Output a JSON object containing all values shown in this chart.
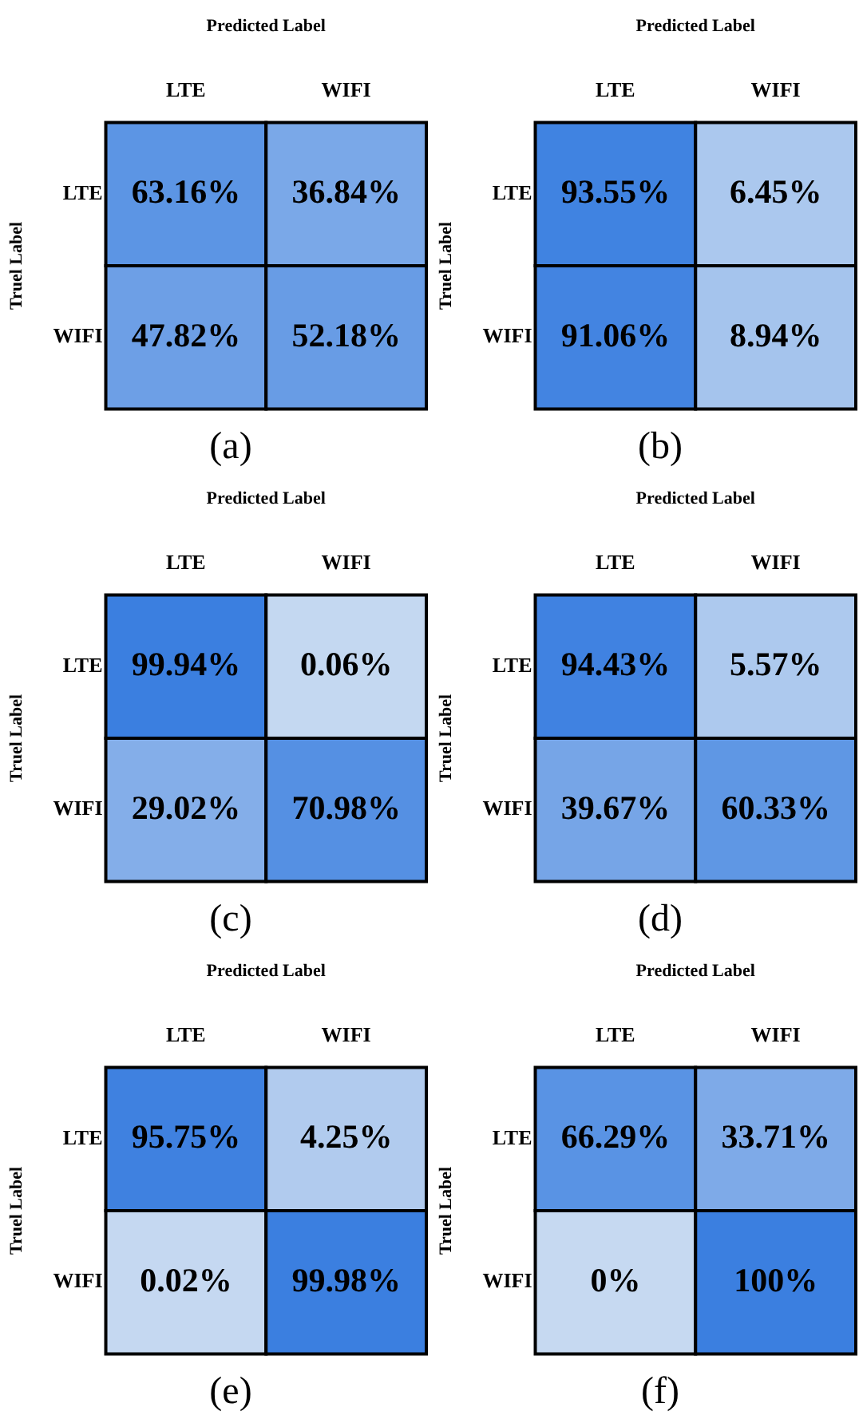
{
  "chart_data": [
    {
      "type": "heatmap",
      "xlabel": "Predicted Label",
      "ylabel": "Truel Label",
      "annotations": [
        "(a)"
      ],
      "categories": [
        "LTE",
        "WIFI"
      ],
      "y_categories": [
        "LTE",
        "WIFI"
      ],
      "cells": [
        [
          63.16,
          36.84
        ],
        [
          47.82,
          52.18
        ]
      ],
      "cell_labels": [
        [
          "63.16%",
          "36.84%"
        ],
        [
          "47.82%",
          "52.18%"
        ]
      ]
    },
    {
      "type": "heatmap",
      "xlabel": "Predicted Label",
      "ylabel": "Truel Label",
      "annotations": [
        "(b)"
      ],
      "categories": [
        "LTE",
        "WIFI"
      ],
      "y_categories": [
        "LTE",
        "WIFI"
      ],
      "cells": [
        [
          93.55,
          6.45
        ],
        [
          91.06,
          8.94
        ]
      ],
      "cell_labels": [
        [
          "93.55%",
          "6.45%"
        ],
        [
          "91.06%",
          "8.94%"
        ]
      ]
    },
    {
      "type": "heatmap",
      "xlabel": "Predicted Label",
      "ylabel": "Truel Label",
      "annotations": [
        "(c)"
      ],
      "categories": [
        "LTE",
        "WIFI"
      ],
      "y_categories": [
        "LTE",
        "WIFI"
      ],
      "cells": [
        [
          99.94,
          0.06
        ],
        [
          29.02,
          70.98
        ]
      ],
      "cell_labels": [
        [
          "99.94%",
          "0.06%"
        ],
        [
          "29.02%",
          "70.98%"
        ]
      ]
    },
    {
      "type": "heatmap",
      "xlabel": "Predicted Label",
      "ylabel": "Truel Label",
      "annotations": [
        "(d)"
      ],
      "categories": [
        "LTE",
        "WIFI"
      ],
      "y_categories": [
        "LTE",
        "WIFI"
      ],
      "cells": [
        [
          94.43,
          5.57
        ],
        [
          39.67,
          60.33
        ]
      ],
      "cell_labels": [
        [
          "94.43%",
          "5.57%"
        ],
        [
          "39.67%",
          "60.33%"
        ]
      ]
    },
    {
      "type": "heatmap",
      "xlabel": "Predicted Label",
      "ylabel": "Truel Label",
      "annotations": [
        "(e)"
      ],
      "categories": [
        "LTE",
        "WIFI"
      ],
      "y_categories": [
        "LTE",
        "WIFI"
      ],
      "cells": [
        [
          95.75,
          4.25
        ],
        [
          0.02,
          99.98
        ]
      ],
      "cell_labels": [
        [
          "95.75%",
          "4.25%"
        ],
        [
          "0.02%",
          "99.98%"
        ]
      ]
    },
    {
      "type": "heatmap",
      "xlabel": "Predicted Label",
      "ylabel": "Truel Label",
      "annotations": [
        "(f)"
      ],
      "categories": [
        "LTE",
        "WIFI"
      ],
      "y_categories": [
        "LTE",
        "WIFI"
      ],
      "cells": [
        [
          66.29,
          33.71
        ],
        [
          0,
          100
        ]
      ],
      "cell_labels": [
        [
          "66.29%",
          "33.71%"
        ],
        [
          "0%",
          "100%"
        ]
      ]
    }
  ]
}
